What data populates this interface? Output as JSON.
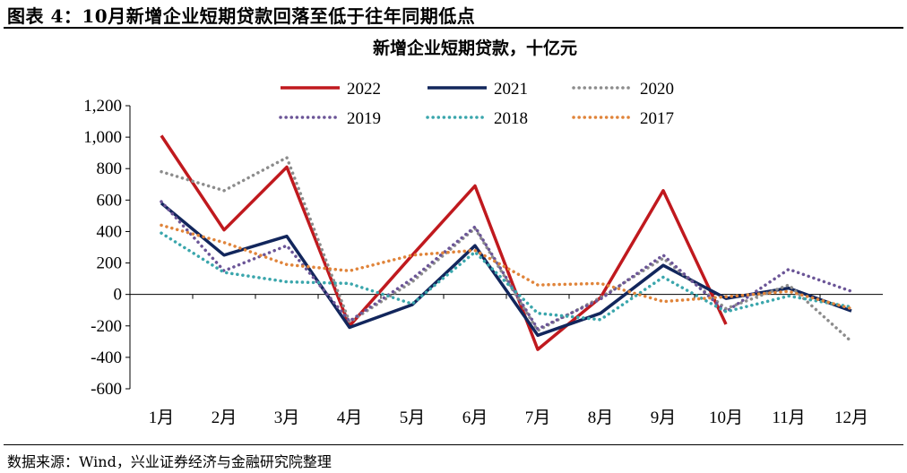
{
  "figure_title": "图表 4：10月新增企业短期贷款回落至低于往年同期低点",
  "source": "数据来源：Wind，兴业证券经济与金融研究院整理",
  "chart_data": {
    "type": "line",
    "title": "新增企业短期贷款，十亿元",
    "xlabel": "",
    "ylabel": "",
    "categories": [
      "1月",
      "2月",
      "3月",
      "4月",
      "5月",
      "6月",
      "7月",
      "8月",
      "9月",
      "10月",
      "11月",
      "12月"
    ],
    "ylim": [
      -600,
      1200
    ],
    "yticks": [
      1200,
      1000,
      800,
      600,
      400,
      200,
      0,
      -200,
      -400,
      -600
    ],
    "ytick_labels": [
      "1,200",
      "1,000",
      "800",
      "600",
      "400",
      "200",
      "0",
      "-200",
      "-400",
      "-600"
    ],
    "legend_position": "top",
    "series": [
      {
        "name": "2022",
        "color": "#c0191e",
        "style": "solid",
        "width": 3.5,
        "values": [
          1010,
          410,
          810,
          -200,
          250,
          690,
          -350,
          -20,
          660,
          -190,
          null,
          null
        ]
      },
      {
        "name": "2021",
        "color": "#12265c",
        "style": "solid",
        "width": 3.5,
        "values": [
          580,
          250,
          370,
          -210,
          -65,
          310,
          -260,
          -120,
          185,
          -25,
          40,
          -105
        ]
      },
      {
        "name": "2020",
        "color": "#8c8c8c",
        "style": "dotted",
        "width": 3.5,
        "values": [
          780,
          660,
          870,
          -175,
          80,
          420,
          -230,
          -20,
          230,
          -90,
          60,
          -300
        ]
      },
      {
        "name": "2019",
        "color": "#6b5597",
        "style": "dotted",
        "width": 3.5,
        "values": [
          590,
          150,
          310,
          -170,
          100,
          430,
          -220,
          -30,
          250,
          -110,
          160,
          20
        ]
      },
      {
        "name": "2018",
        "color": "#3aa6ac",
        "style": "dotted",
        "width": 3.5,
        "values": [
          390,
          140,
          80,
          70,
          -60,
          270,
          -120,
          -160,
          110,
          -110,
          -10,
          -80
        ]
      },
      {
        "name": "2017",
        "color": "#e0843a",
        "style": "dotted",
        "width": 3.5,
        "values": [
          440,
          330,
          190,
          150,
          250,
          280,
          60,
          70,
          -45,
          -15,
          20,
          -90
        ]
      }
    ]
  }
}
